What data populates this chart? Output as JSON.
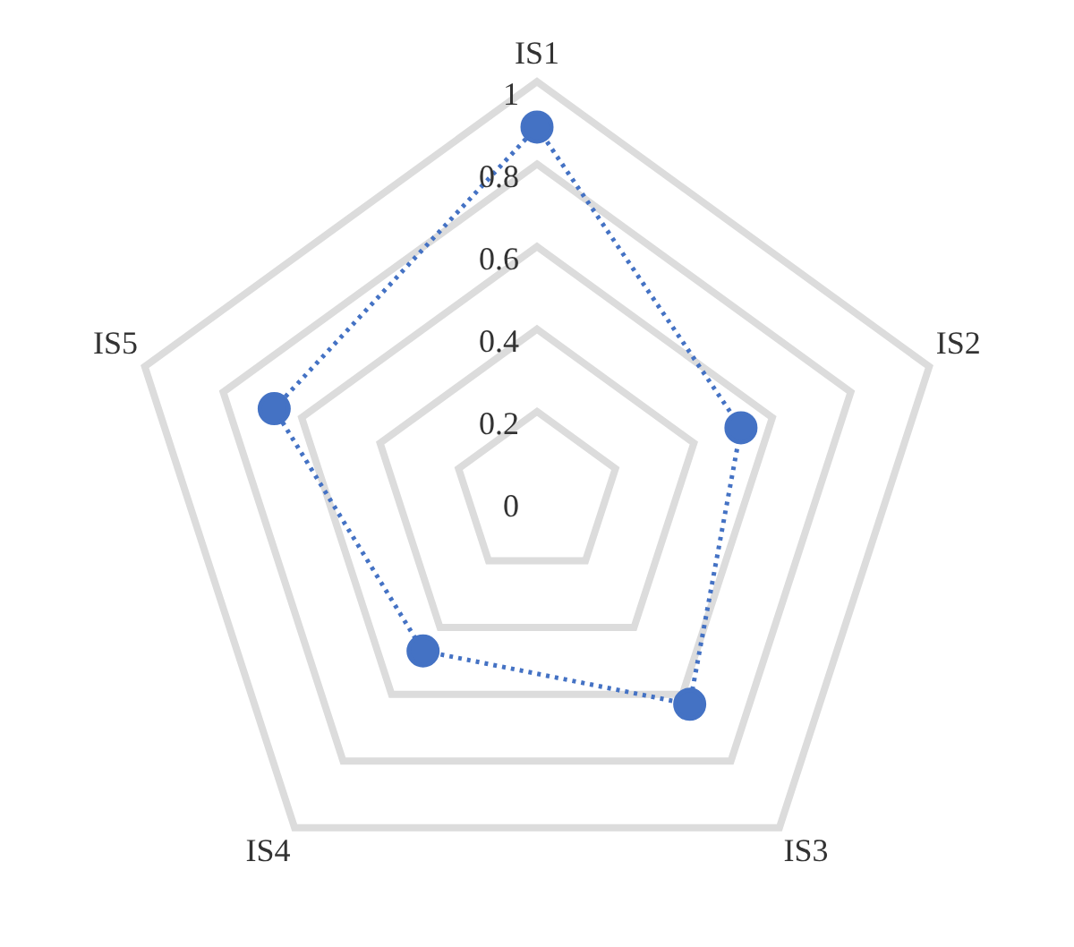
{
  "chart_data": {
    "type": "radar",
    "categories": [
      "IS1",
      "IS2",
      "IS3",
      "IS4",
      "IS5"
    ],
    "series": [
      {
        "color": "#4472c4",
        "values": [
          0.89,
          0.52,
          0.63,
          0.47,
          0.67
        ]
      }
    ],
    "ylim": [
      0,
      1
    ],
    "yticks": [
      0,
      0.2,
      0.4,
      0.6,
      0.8,
      1
    ],
    "grid": true,
    "marker": "circle",
    "line_style": "dotted",
    "legend": false
  }
}
